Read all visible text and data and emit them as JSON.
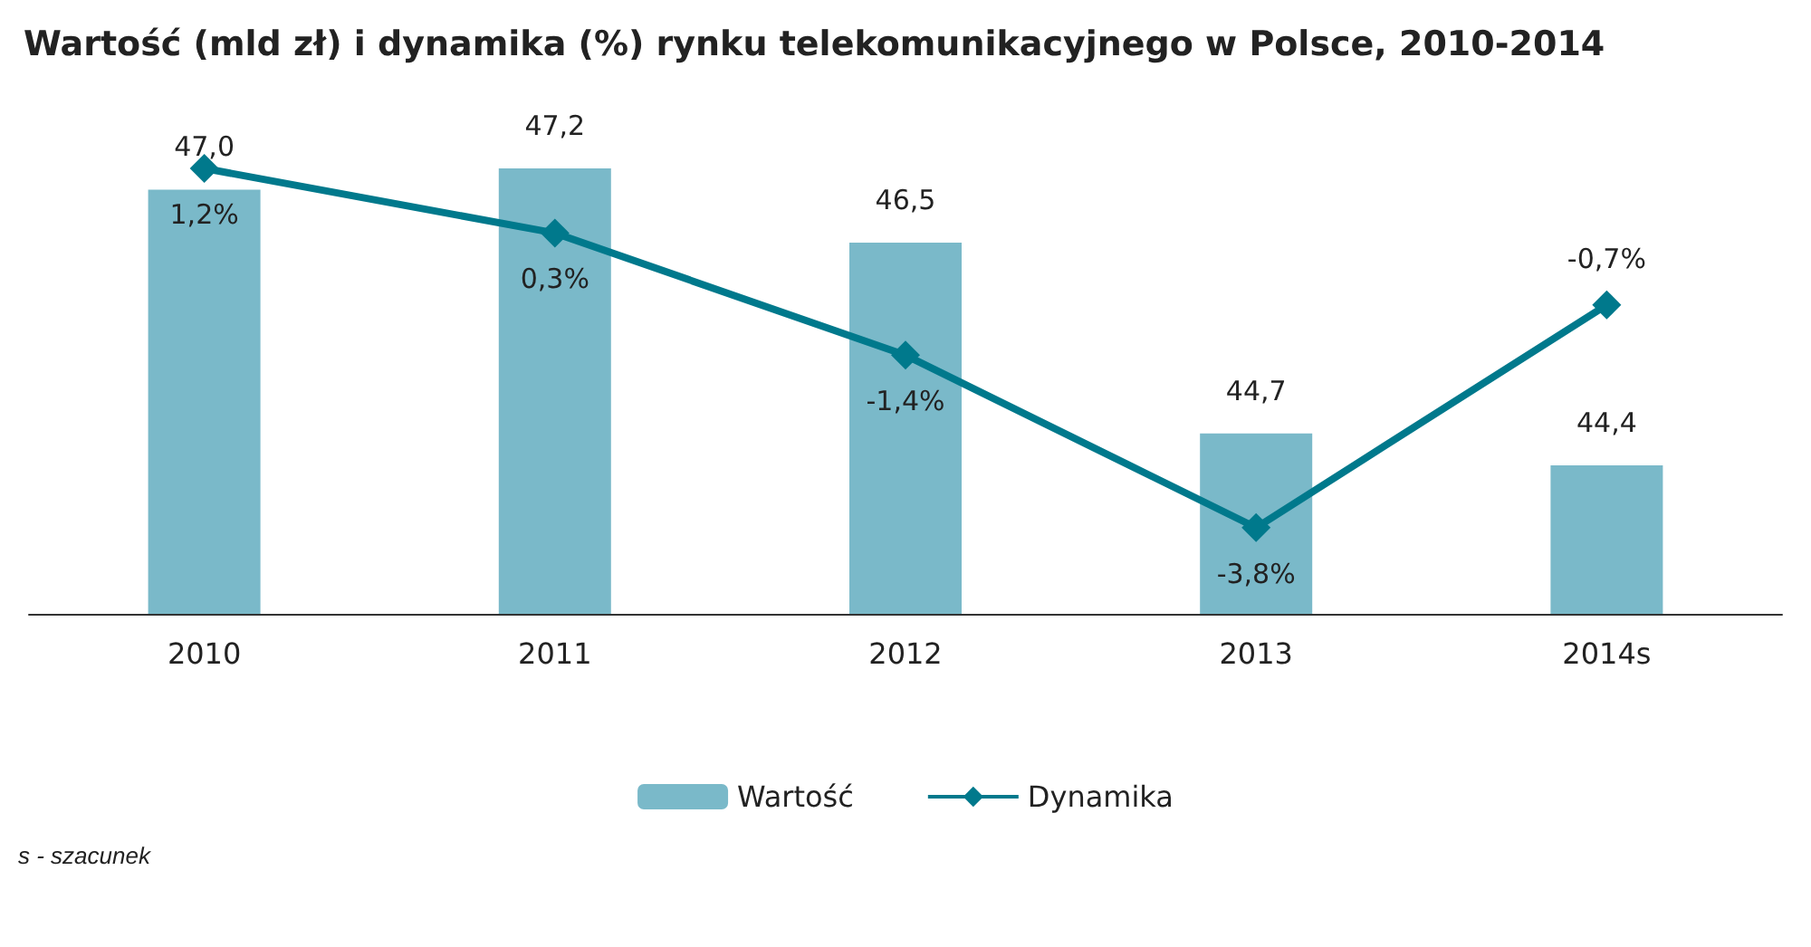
{
  "chart_data": {
    "type": "bar",
    "title": "Wartość (mld zł) i dynamika (%) rynku telekomunikacyjnego w Polsce, 2010-2014",
    "categories": [
      "2010",
      "2011",
      "2012",
      "2013",
      "2014s"
    ],
    "series": [
      {
        "name": "Wartość",
        "color": "#7ab9c9",
        "values": [
          47.0,
          47.2,
          46.5,
          44.7,
          44.4
        ],
        "value_labels": [
          "47,0",
          "47,2",
          "46,5",
          "44,7",
          "44,4"
        ]
      },
      {
        "name": "Dynamika",
        "type": "line",
        "axis": "y2",
        "color": "#00798c",
        "marker": "diamond",
        "values": [
          1.2,
          0.3,
          -1.4,
          -3.8,
          -0.7
        ],
        "value_labels": [
          "1,2%",
          "0,3%",
          "-1,4%",
          "-3,8%",
          "-0,7%"
        ]
      }
    ],
    "ylim": [
      43,
      47.2
    ],
    "y2lim": [
      -5,
      1.2
    ],
    "tick_labels": "x",
    "grid": false,
    "legend": "bottom",
    "annotations": [
      "s - szacunek"
    ]
  }
}
